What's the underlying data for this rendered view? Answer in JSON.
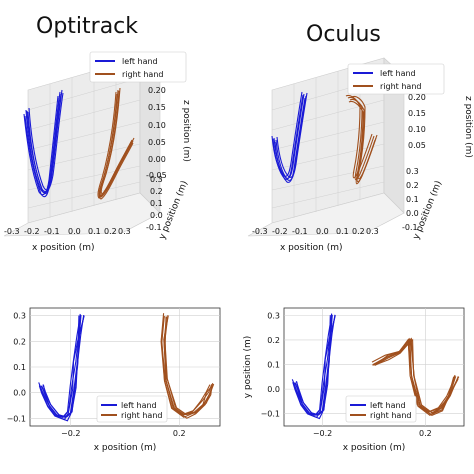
{
  "titles": {
    "left": "Optitrack",
    "right": "Oculus"
  },
  "colors": {
    "left_hand": "#1a1ad6",
    "right_hand": "#a0501e",
    "grid": "#d0d0d0",
    "pane": "#ececec"
  },
  "chart_data": [
    {
      "id": "optitrack-3d",
      "type": "line",
      "projection": "3d",
      "title": "Optitrack",
      "xlabel": "x position (m)",
      "ylabel": "y position (m)",
      "zlabel": "z position (m)",
      "x_ticks": [
        "-0.3",
        "-0.2",
        "-0.1",
        "0.0",
        "0.1",
        "0.2",
        "0.3"
      ],
      "y_ticks": [
        "0.3",
        "0.2",
        "0.1",
        "0.0",
        "-0.1"
      ],
      "z_ticks": [
        "0.20",
        "0.15",
        "0.10",
        "0.05",
        "0.00",
        "-0.05"
      ],
      "legend": [
        "left hand",
        "right hand"
      ],
      "legend_position": "top-right"
    },
    {
      "id": "oculus-3d",
      "type": "line",
      "projection": "3d",
      "title": "Oculus",
      "xlabel": "x position (m)",
      "ylabel": "y position (m)",
      "zlabel": "z position (m)",
      "x_ticks": [
        "-0.3",
        "-0.2",
        "-0.1",
        "0.0",
        "0.1",
        "0.2",
        "0.3"
      ],
      "y_ticks": [
        "0.3",
        "0.2",
        "0.1",
        "0.0",
        "-0.1"
      ],
      "z_ticks": [
        "0.20",
        "0.15",
        "0.10",
        "0.05"
      ],
      "legend": [
        "left hand",
        "right hand"
      ],
      "legend_position": "top-right"
    },
    {
      "id": "optitrack-2d",
      "type": "line",
      "xlabel": "x position (m)",
      "ylabel": "",
      "xlim": [
        -0.35,
        0.35
      ],
      "ylim": [
        -0.13,
        0.33
      ],
      "x_ticks": [
        -0.2,
        0.2
      ],
      "y_ticks": [
        -0.1,
        0.0,
        0.1,
        0.2,
        0.3
      ],
      "x_tick_labels": [
        "−0.2",
        "0.2"
      ],
      "y_tick_labels": [
        "−0.1",
        "0.0",
        "0.1",
        "0.2",
        "0.3"
      ],
      "grid": true,
      "legend": [
        "left hand",
        "right hand"
      ],
      "legend_position": "bottom-center",
      "series": [
        {
          "name": "left hand",
          "x": [
            -0.31,
            -0.3,
            -0.28,
            -0.25,
            -0.22,
            -0.2,
            -0.19,
            -0.18,
            -0.17,
            -0.16
          ],
          "y": [
            0.03,
            0.0,
            -0.05,
            -0.09,
            -0.1,
            -0.08,
            0.02,
            0.12,
            0.22,
            0.3
          ]
        },
        {
          "name": "right hand",
          "x": [
            0.15,
            0.14,
            0.15,
            0.18,
            0.22,
            0.26,
            0.29,
            0.31,
            0.32
          ],
          "y": [
            0.3,
            0.2,
            0.05,
            -0.06,
            -0.09,
            -0.08,
            -0.04,
            0.0,
            0.03
          ]
        }
      ]
    },
    {
      "id": "oculus-2d",
      "type": "line",
      "xlabel": "x position (m)",
      "ylabel": "y position (m)",
      "xlim": [
        -0.35,
        0.35
      ],
      "ylim": [
        -0.15,
        0.33
      ],
      "x_ticks": [
        -0.2,
        0.2
      ],
      "y_ticks": [
        -0.1,
        0.0,
        0.1,
        0.2,
        0.3
      ],
      "x_tick_labels": [
        "−0.2",
        "0.2"
      ],
      "y_tick_labels": [
        "−0.1",
        "0.0",
        "0.1",
        "0.2",
        "0.3"
      ],
      "grid": true,
      "legend": [
        "left hand",
        "right hand"
      ],
      "legend_position": "bottom-center",
      "series": [
        {
          "name": "left hand",
          "x": [
            -0.31,
            -0.3,
            -0.28,
            -0.25,
            -0.22,
            -0.2,
            -0.19,
            -0.18,
            -0.17,
            -0.16
          ],
          "y": [
            0.03,
            0.0,
            -0.06,
            -0.1,
            -0.11,
            -0.09,
            0.02,
            0.12,
            0.22,
            0.3
          ]
        },
        {
          "name": "right hand",
          "x": [
            0.0,
            0.05,
            0.1,
            0.14,
            0.15,
            0.18,
            0.22,
            0.26,
            0.29,
            0.32
          ],
          "y": [
            0.1,
            0.13,
            0.15,
            0.2,
            0.05,
            -0.07,
            -0.1,
            -0.08,
            -0.03,
            0.05
          ]
        }
      ]
    }
  ]
}
